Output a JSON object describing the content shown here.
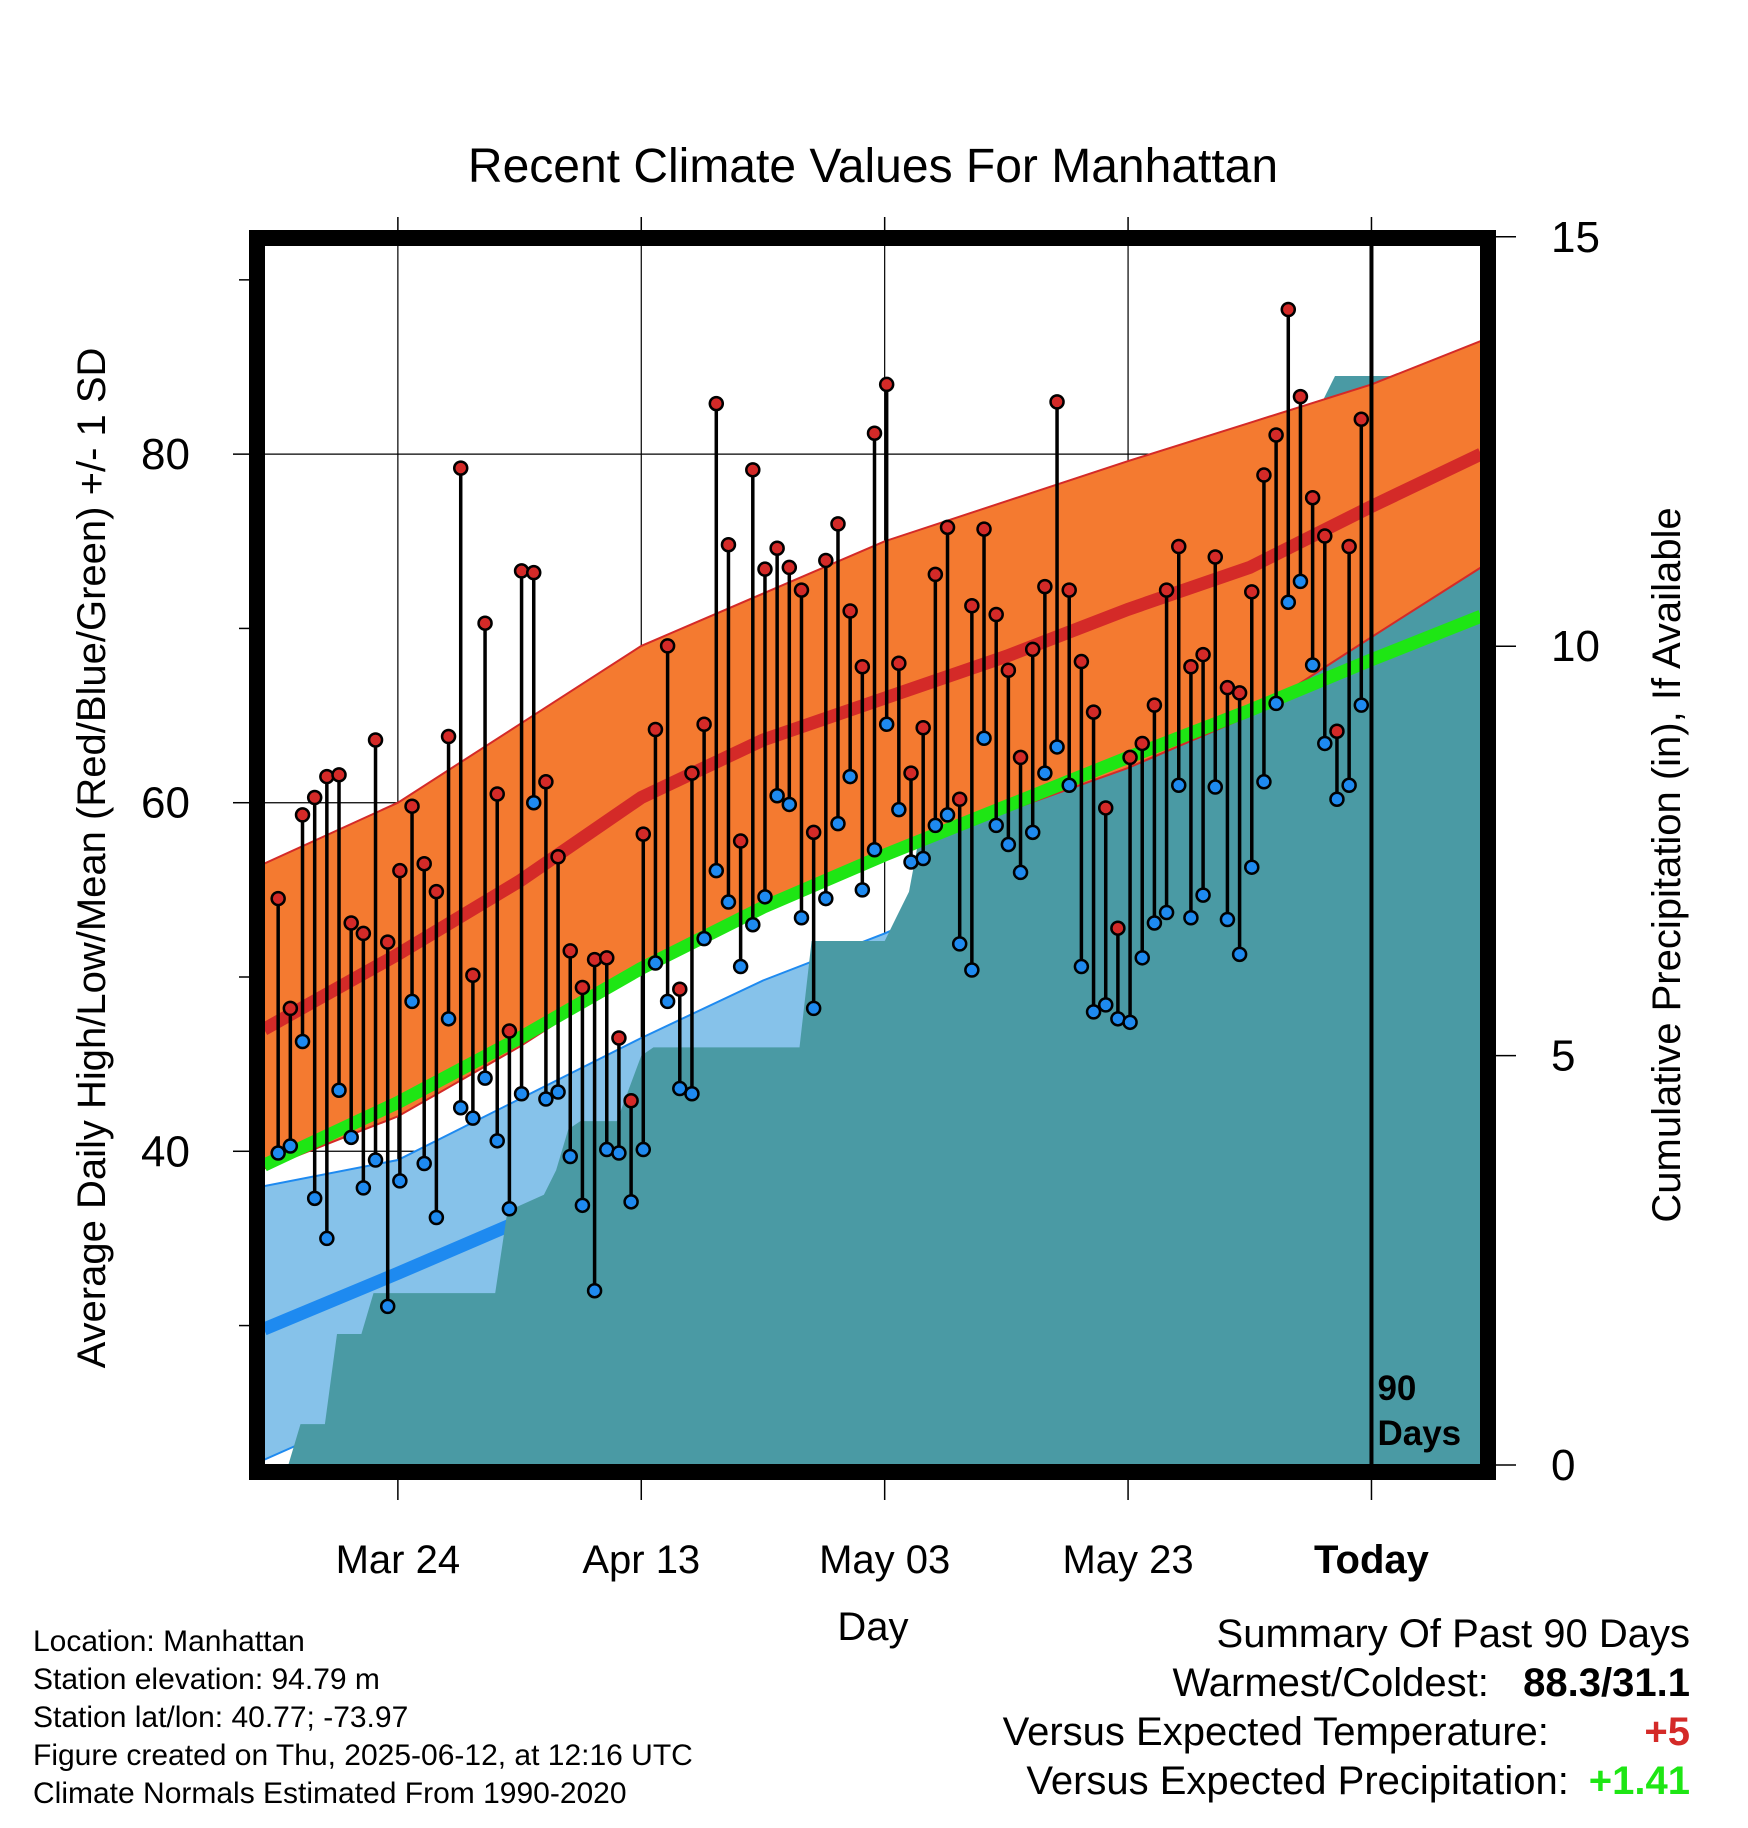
{
  "chart_data": {
    "type": "line",
    "title": "Recent Climate Values For Manhattan",
    "xlabel": "Day",
    "ylabel": "Average Daily High/Low/Mean (Red/Blue/Green) +/- 1 SD",
    "y2label": "Cumulative Precipitation (in), If Available",
    "x_tick_labels": [
      "Mar 24",
      "Apr 13",
      "May 03",
      "May 23",
      "Today"
    ],
    "x_tick_dates": [
      "2025-03-24",
      "2025-04-13",
      "2025-05-03",
      "2025-05-23",
      "2025-06-12"
    ],
    "xlim": [
      "2025-03-13",
      "2025-06-21"
    ],
    "ylim": [
      22,
      92
    ],
    "y_ticks": [
      40,
      60,
      80
    ],
    "y2lim": [
      0,
      14.9
    ],
    "y2_ticks": [
      0,
      5,
      10,
      15
    ],
    "today_marker": {
      "date": "2025-06-12",
      "label": [
        "90",
        "Days"
      ]
    },
    "grid": true,
    "colors": {
      "high_band": "#f47a30",
      "high_mean": "#d42a28",
      "low_band": "#86c2ea",
      "low_mean": "#1e8af0",
      "mean": "#1ee614",
      "precip": "#4a9aa4",
      "high_point": "#d42a28",
      "low_point": "#1e8af0"
    },
    "normals": {
      "dates": [
        "2025-03-13",
        "2025-03-24",
        "2025-04-03",
        "2025-04-13",
        "2025-04-23",
        "2025-05-03",
        "2025-05-13",
        "2025-05-23",
        "2025-06-02",
        "2025-06-12",
        "2025-06-21"
      ],
      "high_mean": [
        47.0,
        51.3,
        55.5,
        60.3,
        63.6,
        66.0,
        68.4,
        71.1,
        73.5,
        77.0,
        80.0
      ],
      "high_upper": [
        56.5,
        60.0,
        64.5,
        69.0,
        72.0,
        75.0,
        77.3,
        79.6,
        81.8,
        84.0,
        86.5
      ],
      "high_lower": [
        39.0,
        42.0,
        46.0,
        50.5,
        54.0,
        57.0,
        59.5,
        62.0,
        65.0,
        69.5,
        73.5
      ],
      "mean": [
        39.2,
        42.8,
        46.5,
        50.5,
        54.0,
        57.0,
        59.8,
        62.6,
        65.3,
        68.2,
        70.7
      ],
      "low_mean": [
        29.8,
        33.0,
        36.0,
        39.5,
        42.8,
        45.5,
        48.0,
        50.5,
        53.3,
        58.0,
        61.3
      ],
      "low_upper": [
        38.0,
        39.5,
        43.0,
        46.5,
        49.8,
        52.5,
        55.5,
        58.4,
        61.0,
        64.0,
        66.8
      ],
      "low_lower": [
        22.3,
        25.7,
        29.0,
        32.5,
        36.5,
        40.0,
        43.0,
        46.0,
        49.5,
        52.5,
        55.7
      ]
    },
    "days": [
      "2025-03-14",
      "2025-03-15",
      "2025-03-16",
      "2025-03-17",
      "2025-03-18",
      "2025-03-19",
      "2025-03-20",
      "2025-03-21",
      "2025-03-22",
      "2025-03-23",
      "2025-03-24",
      "2025-03-25",
      "2025-03-26",
      "2025-03-27",
      "2025-03-28",
      "2025-03-29",
      "2025-03-30",
      "2025-03-31",
      "2025-04-01",
      "2025-04-02",
      "2025-04-03",
      "2025-04-04",
      "2025-04-05",
      "2025-04-06",
      "2025-04-07",
      "2025-04-08",
      "2025-04-09",
      "2025-04-10",
      "2025-04-11",
      "2025-04-12",
      "2025-04-13",
      "2025-04-14",
      "2025-04-15",
      "2025-04-16",
      "2025-04-17",
      "2025-04-18",
      "2025-04-19",
      "2025-04-20",
      "2025-04-21",
      "2025-04-22",
      "2025-04-23",
      "2025-04-24",
      "2025-04-25",
      "2025-04-26",
      "2025-04-27",
      "2025-04-28",
      "2025-04-29",
      "2025-04-30",
      "2025-05-01",
      "2025-05-02",
      "2025-05-03",
      "2025-05-04",
      "2025-05-05",
      "2025-05-06",
      "2025-05-07",
      "2025-05-08",
      "2025-05-09",
      "2025-05-10",
      "2025-05-11",
      "2025-05-12",
      "2025-05-13",
      "2025-05-14",
      "2025-05-15",
      "2025-05-16",
      "2025-05-17",
      "2025-05-18",
      "2025-05-19",
      "2025-05-20",
      "2025-05-21",
      "2025-05-22",
      "2025-05-23",
      "2025-05-24",
      "2025-05-25",
      "2025-05-26",
      "2025-05-27",
      "2025-05-28",
      "2025-05-29",
      "2025-05-30",
      "2025-05-31",
      "2025-06-01",
      "2025-06-02",
      "2025-06-03",
      "2025-06-04",
      "2025-06-05",
      "2025-06-06",
      "2025-06-07",
      "2025-06-08",
      "2025-06-09",
      "2025-06-10",
      "2025-06-11"
    ],
    "highs": [
      54.5,
      48.2,
      59.3,
      60.3,
      61.5,
      61.6,
      53.1,
      52.5,
      63.6,
      52.0,
      56.1,
      59.8,
      56.5,
      54.9,
      63.8,
      79.2,
      50.1,
      70.3,
      60.5,
      46.9,
      73.3,
      73.2,
      61.2,
      56.9,
      51.5,
      49.4,
      51.0,
      51.1,
      46.5,
      42.9,
      58.2,
      64.2,
      69.0,
      49.3,
      61.7,
      64.5,
      82.9,
      74.8,
      57.8,
      79.1,
      73.4,
      74.6,
      73.5,
      72.2,
      58.3,
      73.9,
      76.0,
      71.0,
      67.8,
      81.2,
      84.0,
      68.0,
      61.7,
      64.3,
      73.1,
      75.8,
      60.2,
      71.3,
      75.7,
      70.8,
      67.6,
      62.6,
      68.8,
      72.4,
      83.0,
      72.2,
      68.1,
      65.2,
      59.7,
      52.8,
      62.6,
      63.4,
      65.6,
      72.2,
      74.7,
      67.8,
      68.5,
      74.1,
      66.6,
      66.3,
      72.1,
      78.8,
      81.1,
      88.3,
      83.3,
      77.5,
      75.3,
      64.1,
      74.7,
      82.0
    ],
    "lows": [
      39.9,
      40.3,
      46.3,
      37.3,
      35.0,
      43.5,
      40.8,
      37.9,
      39.5,
      31.1,
      38.3,
      48.6,
      39.3,
      36.2,
      47.6,
      42.5,
      41.9,
      44.2,
      40.6,
      36.7,
      43.3,
      60.0,
      43.0,
      43.4,
      39.7,
      36.9,
      32.0,
      40.1,
      39.9,
      37.1,
      40.1,
      50.8,
      48.6,
      43.6,
      43.3,
      52.2,
      56.1,
      54.3,
      50.6,
      53.0,
      54.6,
      60.4,
      59.9,
      53.4,
      48.2,
      54.5,
      58.8,
      61.5,
      55.0,
      57.3,
      64.5,
      59.6,
      56.6,
      56.8,
      58.7,
      59.3,
      51.9,
      50.4,
      63.7,
      58.7,
      57.6,
      56.0,
      58.3,
      61.7,
      63.2,
      61.0,
      50.6,
      48.0,
      48.4,
      47.6,
      47.4,
      51.1,
      53.1,
      53.7,
      61.0,
      53.4,
      54.7,
      60.9,
      53.3,
      51.3,
      56.3,
      61.2,
      65.7,
      71.5,
      72.7,
      67.9,
      63.4,
      60.2,
      61.0,
      65.6
    ],
    "precip_cumulative": {
      "dates": [
        "2025-03-13",
        "2025-03-15",
        "2025-03-16",
        "2025-03-18",
        "2025-03-19",
        "2025-03-21",
        "2025-03-22",
        "2025-03-25",
        "2025-03-26",
        "2025-04-01",
        "2025-04-02",
        "2025-04-05",
        "2025-04-06",
        "2025-04-07",
        "2025-04-08",
        "2025-04-11",
        "2025-04-12",
        "2025-04-13",
        "2025-04-14",
        "2025-04-26",
        "2025-04-27",
        "2025-05-03",
        "2025-05-04",
        "2025-05-05",
        "2025-05-06",
        "2025-05-09",
        "2025-05-10",
        "2025-05-13",
        "2025-05-14",
        "2025-05-18",
        "2025-05-19",
        "2025-05-22",
        "2025-05-23",
        "2025-05-27",
        "2025-05-28",
        "2025-05-30",
        "2025-06-04",
        "2025-06-05",
        "2025-06-07",
        "2025-06-08",
        "2025-06-09",
        "2025-06-21"
      ],
      "values": [
        0.0,
        0.0,
        0.5,
        0.5,
        1.6,
        1.6,
        2.1,
        2.1,
        2.1,
        2.1,
        3.1,
        3.3,
        3.6,
        4.1,
        4.2,
        4.2,
        4.6,
        5.0,
        5.1,
        5.1,
        6.4,
        6.4,
        6.7,
        7.0,
        7.8,
        8.0,
        8.5,
        8.7,
        9.1,
        9.6,
        9.9,
        9.9,
        10.8,
        10.9,
        11.5,
        11.6,
        12.0,
        12.7,
        12.8,
        13.0,
        13.3,
        13.3
      ]
    }
  },
  "footer": {
    "location": "Location: Manhattan",
    "elevation": "Station elevation: 94.79 m",
    "latlon": "Station lat/lon: 40.77; -73.97",
    "created": "Figure created on Thu, 2025-06-12, at 12:16 UTC",
    "normals": "Climate Normals Estimated From 1990-2020"
  },
  "summary": {
    "title": "Summary Of Past 90 Days",
    "warmest_label": "Warmest/Coldest:",
    "warmest_value": "88.3/31.1",
    "temp_label": "Versus Expected Temperature:",
    "temp_value": "+5",
    "temp_color": "#d42a28",
    "precip_label": "Versus Expected Precipitation:",
    "precip_value": "+1.41",
    "precip_color": "#1ee614"
  }
}
